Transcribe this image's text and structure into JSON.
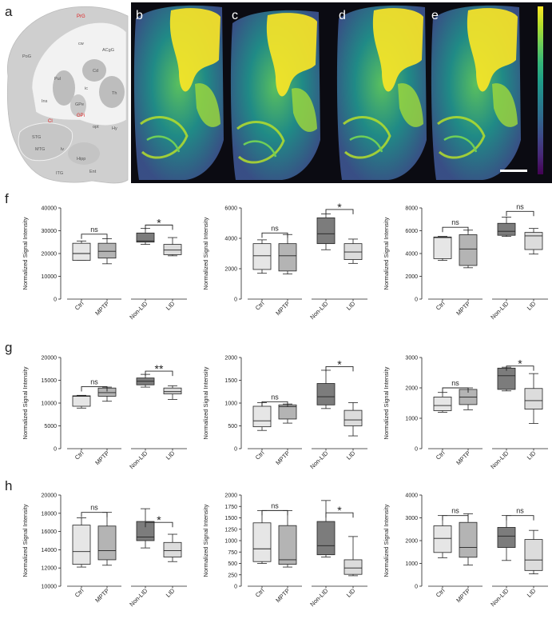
{
  "panel_letters": {
    "a": "a",
    "b": "b",
    "c": "c",
    "d": "d",
    "e": "e",
    "f": "f",
    "g": "g",
    "h": "h"
  },
  "atlas_labels": [
    {
      "text": "PrG",
      "red": true
    },
    {
      "text": "PoG",
      "red": false
    },
    {
      "text": "cw",
      "red": false
    },
    {
      "text": "ACgG",
      "red": false
    },
    {
      "text": "Cd",
      "red": false
    },
    {
      "text": "Pul",
      "red": false
    },
    {
      "text": "ic",
      "red": false
    },
    {
      "text": "Th",
      "red": false
    },
    {
      "text": "GPe",
      "red": false
    },
    {
      "text": "Ins",
      "red": false
    },
    {
      "text": "Cl",
      "red": true
    },
    {
      "text": "GPi",
      "red": true
    },
    {
      "text": "opt",
      "red": false
    },
    {
      "text": "Hy",
      "red": false
    },
    {
      "text": "STG",
      "red": false
    },
    {
      "text": "MTG",
      "red": false
    },
    {
      "text": "lv",
      "red": false
    },
    {
      "text": "Hipp",
      "red": false
    },
    {
      "text": "ITG",
      "red": false
    },
    {
      "text": "Ent",
      "red": false
    }
  ],
  "colormap": [
    "#fde725",
    "#b5de2b",
    "#6ece58",
    "#35b779",
    "#1f9e89",
    "#26828e",
    "#31688e",
    "#3e4989",
    "#482878",
    "#440154"
  ],
  "chart_data": [
    {
      "id": "f1",
      "type": "box",
      "ylabel": "Normalized Signal Intensity",
      "ylim": [
        0,
        40000
      ],
      "yticks": [
        "0",
        "10000",
        "20000",
        "30000",
        "40000"
      ],
      "categories": [
        "Ctrl",
        "MPTP",
        "Non-LID",
        "LID"
      ],
      "boxes": [
        {
          "min": 17000,
          "q1": 17000,
          "median": 20000,
          "q3": 24500,
          "max": 25500,
          "fill": "#e6e6e6"
        },
        {
          "min": 15500,
          "q1": 18000,
          "median": 21000,
          "q3": 24500,
          "max": 26500,
          "fill": "#b4b4b4"
        },
        {
          "min": 24000,
          "q1": 25000,
          "median": 25500,
          "q3": 29000,
          "max": 31000,
          "fill": "#7c7c7c"
        },
        {
          "min": 19000,
          "q1": 19500,
          "median": 21500,
          "q3": 24000,
          "max": 27000,
          "fill": "#dcdcdc"
        }
      ],
      "comparisons": [
        {
          "a": 0,
          "b": 1,
          "label": "ns",
          "y": 28500
        },
        {
          "a": 2,
          "b": 3,
          "label": "*",
          "y": 32500
        }
      ]
    },
    {
      "id": "f2",
      "type": "box",
      "ylabel": "Normalized Signal Intensity",
      "ylim": [
        0,
        6000
      ],
      "yticks": [
        "0",
        "2000",
        "4000",
        "6000"
      ],
      "categories": [
        "Ctrl",
        "MPTP",
        "Non-LID",
        "LID"
      ],
      "boxes": [
        {
          "min": 1700,
          "q1": 1950,
          "median": 2850,
          "q3": 3650,
          "max": 3900,
          "fill": "#e6e6e6"
        },
        {
          "min": 1650,
          "q1": 1850,
          "median": 2850,
          "q3": 3650,
          "max": 4250,
          "fill": "#b4b4b4"
        },
        {
          "min": 3250,
          "q1": 3650,
          "median": 4300,
          "q3": 5350,
          "max": 5600,
          "fill": "#7c7c7c"
        },
        {
          "min": 2350,
          "q1": 2600,
          "median": 3100,
          "q3": 3650,
          "max": 3950,
          "fill": "#dcdcdc"
        }
      ],
      "comparisons": [
        {
          "a": 0,
          "b": 1,
          "label": "ns",
          "y": 4350
        },
        {
          "a": 2,
          "b": 3,
          "label": "*",
          "y": 5900
        }
      ]
    },
    {
      "id": "f3",
      "type": "box",
      "ylabel": "Normalized Signal Intensity",
      "ylim": [
        0,
        8000
      ],
      "yticks": [
        "0",
        "2000",
        "4000",
        "6000",
        "8000"
      ],
      "categories": [
        "Ctrl",
        "MPTP",
        "Non-LID",
        "LID"
      ],
      "boxes": [
        {
          "min": 3400,
          "q1": 3550,
          "median": 5400,
          "q3": 5450,
          "max": 5500,
          "fill": "#e6e6e6"
        },
        {
          "min": 2750,
          "q1": 2950,
          "median": 4400,
          "q3": 5650,
          "max": 6050,
          "fill": "#b4b4b4"
        },
        {
          "min": 5500,
          "q1": 5600,
          "median": 5950,
          "q3": 6650,
          "max": 7200,
          "fill": "#7c7c7c"
        },
        {
          "min": 3950,
          "q1": 4350,
          "median": 5550,
          "q3": 5850,
          "max": 6200,
          "fill": "#dcdcdc"
        }
      ],
      "comparisons": [
        {
          "a": 0,
          "b": 1,
          "label": "ns",
          "y": 6300
        },
        {
          "a": 2,
          "b": 3,
          "label": "ns",
          "y": 7700
        }
      ]
    },
    {
      "id": "g1",
      "type": "box",
      "ylabel": "Normalized Signal Intensity",
      "ylim": [
        0,
        20000
      ],
      "yticks": [
        "0",
        "5000",
        "10000",
        "15000",
        "20000"
      ],
      "categories": [
        "Ctrl",
        "MPTP",
        "Non-LID",
        "LID"
      ],
      "boxes": [
        {
          "min": 8900,
          "q1": 9300,
          "median": 11500,
          "q3": 11600,
          "max": 11700,
          "fill": "#e6e6e6"
        },
        {
          "min": 10400,
          "q1": 11500,
          "median": 12300,
          "q3": 13300,
          "max": 13500,
          "fill": "#b4b4b4"
        },
        {
          "min": 13500,
          "q1": 14000,
          "median": 14800,
          "q3": 15500,
          "max": 16300,
          "fill": "#7c7c7c"
        },
        {
          "min": 10800,
          "q1": 12000,
          "median": 12500,
          "q3": 13300,
          "max": 13800,
          "fill": "#dcdcdc"
        }
      ],
      "comparisons": [
        {
          "a": 0,
          "b": 1,
          "label": "ns",
          "y": 13600
        },
        {
          "a": 2,
          "b": 3,
          "label": "**",
          "y": 17000
        }
      ]
    },
    {
      "id": "g2",
      "type": "box",
      "ylabel": "Normalized Signal Intensity",
      "ylim": [
        0,
        2000
      ],
      "yticks": [
        "0",
        "500",
        "1000",
        "1500",
        "2000"
      ],
      "categories": [
        "Ctrl",
        "MPTP",
        "Non-LID",
        "LID"
      ],
      "boxes": [
        {
          "min": 400,
          "q1": 480,
          "median": 610,
          "q3": 930,
          "max": 1010,
          "fill": "#e6e6e6"
        },
        {
          "min": 560,
          "q1": 650,
          "median": 920,
          "q3": 960,
          "max": 980,
          "fill": "#b4b4b4"
        },
        {
          "min": 880,
          "q1": 960,
          "median": 1140,
          "q3": 1430,
          "max": 1720,
          "fill": "#7c7c7c"
        },
        {
          "min": 280,
          "q1": 500,
          "median": 630,
          "q3": 840,
          "max": 1010,
          "fill": "#dcdcdc"
        }
      ],
      "comparisons": [
        {
          "a": 0,
          "b": 1,
          "label": "ns",
          "y": 1030
        },
        {
          "a": 2,
          "b": 3,
          "label": "*",
          "y": 1800
        }
      ]
    },
    {
      "id": "g3",
      "type": "box",
      "ylabel": "Normalized Signal Intensity",
      "ylim": [
        0,
        3000
      ],
      "yticks": [
        "0",
        "1000",
        "2000",
        "3000"
      ],
      "categories": [
        "Ctrl",
        "MPTP",
        "Non-LID",
        "LID"
      ],
      "boxes": [
        {
          "min": 1200,
          "q1": 1250,
          "median": 1420,
          "q3": 1700,
          "max": 1850,
          "fill": "#e6e6e6"
        },
        {
          "min": 1280,
          "q1": 1450,
          "median": 1700,
          "q3": 1950,
          "max": 2000,
          "fill": "#b4b4b4"
        },
        {
          "min": 1900,
          "q1": 1950,
          "median": 2400,
          "q3": 2650,
          "max": 2680,
          "fill": "#7c7c7c"
        },
        {
          "min": 830,
          "q1": 1300,
          "median": 1580,
          "q3": 1980,
          "max": 2470,
          "fill": "#dcdcdc"
        }
      ],
      "comparisons": [
        {
          "a": 0,
          "b": 1,
          "label": "ns",
          "y": 2000
        },
        {
          "a": 2,
          "b": 3,
          "label": "*",
          "y": 2720
        }
      ]
    },
    {
      "id": "h1",
      "type": "box",
      "ylabel": "Normalized Signal Intensity",
      "ylim": [
        10000,
        20000
      ],
      "yticks": [
        "10000",
        "12000",
        "14000",
        "16000",
        "18000",
        "20000"
      ],
      "categories": [
        "Ctrl",
        "MPTP",
        "Non-LID",
        "LID"
      ],
      "boxes": [
        {
          "min": 12100,
          "q1": 12400,
          "median": 13800,
          "q3": 16700,
          "max": 17500,
          "fill": "#e6e6e6"
        },
        {
          "min": 12300,
          "q1": 12900,
          "median": 13900,
          "q3": 16600,
          "max": 18100,
          "fill": "#b4b4b4"
        },
        {
          "min": 14200,
          "q1": 15000,
          "median": 15400,
          "q3": 17100,
          "max": 18500,
          "fill": "#7c7c7c"
        },
        {
          "min": 12700,
          "q1": 13200,
          "median": 13900,
          "q3": 14800,
          "max": 15700,
          "fill": "#dcdcdc"
        }
      ],
      "comparisons": [
        {
          "a": 0,
          "b": 1,
          "label": "ns",
          "y": 18100
        },
        {
          "a": 2,
          "b": 3,
          "label": "*",
          "y": 17000
        }
      ]
    },
    {
      "id": "h2",
      "type": "box",
      "ylabel": "Normalized Signal Intensity",
      "ylim": [
        0,
        2000
      ],
      "yticks": [
        "0",
        "250",
        "500",
        "750",
        "1000",
        "1250",
        "1500",
        "1750",
        "2000"
      ],
      "categories": [
        "Ctrl",
        "MPTP",
        "Non-LID",
        "LID"
      ],
      "boxes": [
        {
          "min": 500,
          "q1": 540,
          "median": 820,
          "q3": 1390,
          "max": 1660,
          "fill": "#e6e6e6"
        },
        {
          "min": 420,
          "q1": 480,
          "median": 580,
          "q3": 1330,
          "max": 1660,
          "fill": "#b4b4b4"
        },
        {
          "min": 640,
          "q1": 690,
          "median": 890,
          "q3": 1420,
          "max": 1880,
          "fill": "#7c7c7c"
        },
        {
          "min": 230,
          "q1": 260,
          "median": 400,
          "q3": 580,
          "max": 1090,
          "fill": "#dcdcdc"
        }
      ],
      "comparisons": [
        {
          "a": 0,
          "b": 1,
          "label": "ns",
          "y": 1660
        },
        {
          "a": 2,
          "b": 3,
          "label": "*",
          "y": 1610
        }
      ]
    },
    {
      "id": "h3",
      "type": "box",
      "ylabel": "Normalized Signal Intensity",
      "ylim": [
        0,
        4000
      ],
      "yticks": [
        "0",
        "1000",
        "2000",
        "3000",
        "4000"
      ],
      "categories": [
        "Ctrl",
        "MPTP",
        "Non-LID",
        "LID"
      ],
      "boxes": [
        {
          "min": 1250,
          "q1": 1480,
          "median": 2100,
          "q3": 2650,
          "max": 3100,
          "fill": "#e6e6e6"
        },
        {
          "min": 930,
          "q1": 1270,
          "median": 1700,
          "q3": 2800,
          "max": 3180,
          "fill": "#b4b4b4"
        },
        {
          "min": 1130,
          "q1": 1700,
          "median": 2200,
          "q3": 2580,
          "max": 3100,
          "fill": "#7c7c7c"
        },
        {
          "min": 540,
          "q1": 690,
          "median": 1150,
          "q3": 2050,
          "max": 2450,
          "fill": "#dcdcdc"
        }
      ],
      "comparisons": [
        {
          "a": 0,
          "b": 1,
          "label": "ns",
          "y": 3100
        },
        {
          "a": 2,
          "b": 3,
          "label": "ns",
          "y": 3100
        }
      ]
    }
  ]
}
